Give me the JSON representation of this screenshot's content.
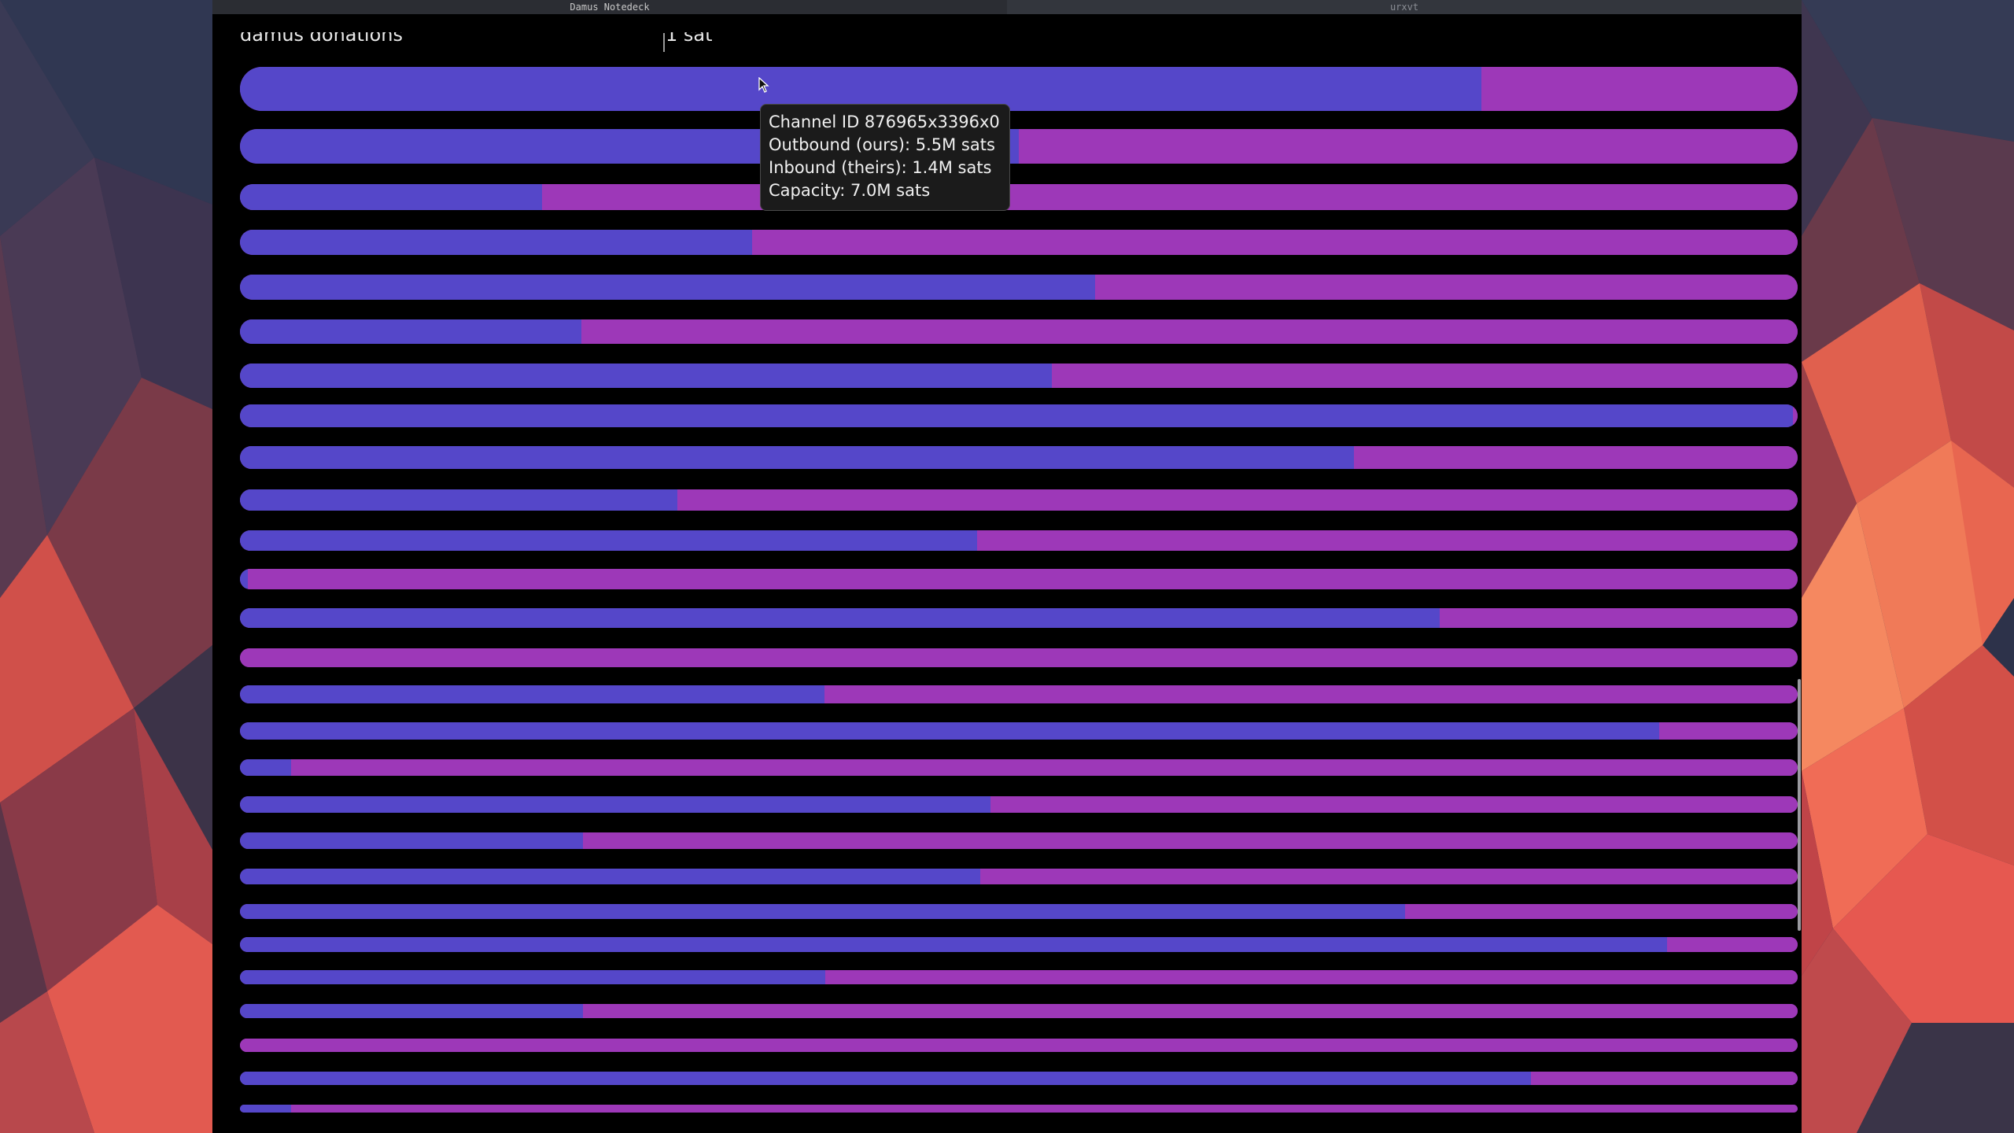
{
  "taskbar": {
    "tabs": [
      {
        "label": "Damus Notedeck",
        "active": true
      },
      {
        "label": "urxvt",
        "active": false
      }
    ]
  },
  "header": {
    "label": "damus donations",
    "value": "1 sat"
  },
  "colors": {
    "outbound": "#5547c9",
    "inbound": "#9d38b8",
    "window_bg": "#000000",
    "tooltip_bg": "#1b1b1b"
  },
  "tooltip": {
    "channel_id": "Channel ID 876965x3396x0",
    "outbound": "Outbound (ours): 5.5M sats",
    "inbound": "Inbound (theirs): 1.4M sats",
    "capacity": "Capacity: 7.0M sats"
  },
  "chart_data": {
    "type": "bar",
    "orientation": "horizontal-stacked",
    "series": [
      {
        "key": "outbound",
        "color": "#5547c9"
      },
      {
        "key": "inbound",
        "color": "#9d38b8"
      }
    ],
    "outbound_ratio": [
      0.797,
      0.5,
      0.194,
      0.329,
      0.549,
      0.219,
      0.521,
      0.997,
      0.715,
      0.281,
      0.473,
      0.005,
      0.77,
      0.0,
      0.375,
      0.911,
      0.033,
      0.482,
      0.22,
      0.475,
      0.748,
      0.916,
      0.376,
      0.22,
      0.0,
      0.829,
      0.033
    ]
  }
}
